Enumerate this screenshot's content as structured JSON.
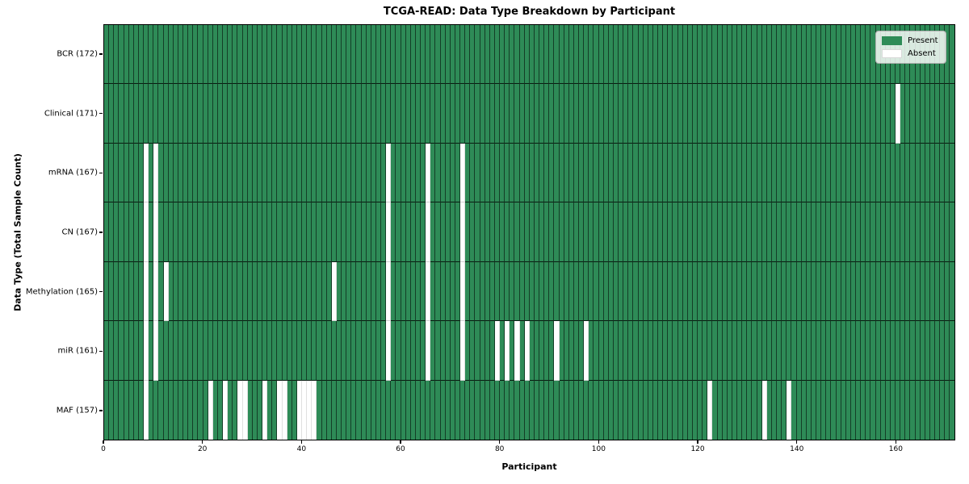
{
  "chart_data": {
    "type": "heatmap",
    "title": "TCGA-READ: Data Type Breakdown by Participant",
    "xlabel": "Participant",
    "ylabel": "Data Type (Total Sample Count)",
    "n_participants": 172,
    "x_ticks": [
      0,
      20,
      40,
      60,
      80,
      100,
      120,
      140,
      160
    ],
    "x_range": [
      0,
      172
    ],
    "grid": false,
    "legend": {
      "present": "Present",
      "absent": "Absent",
      "position": "upper right"
    },
    "colors": {
      "present": "#2E8B57",
      "absent": "#FFFFFF"
    },
    "rows": [
      {
        "label": "BCR (172)",
        "data_type": "BCR",
        "sample_count": 172,
        "absent_participants": []
      },
      {
        "label": "Clinical (171)",
        "data_type": "Clinical",
        "sample_count": 171,
        "absent_participants": [
          160
        ]
      },
      {
        "label": "mRNA (167)",
        "data_type": "mRNA",
        "sample_count": 167,
        "absent_participants": [
          8,
          10,
          57,
          65,
          72
        ]
      },
      {
        "label": "CN (167)",
        "data_type": "CN",
        "sample_count": 167,
        "absent_participants": [
          8,
          10,
          57,
          65,
          72
        ]
      },
      {
        "label": "Methylation (165)",
        "data_type": "Methylation",
        "sample_count": 165,
        "absent_participants": [
          8,
          10,
          12,
          46,
          57,
          65,
          72
        ]
      },
      {
        "label": "miR (161)",
        "data_type": "miR",
        "sample_count": 161,
        "absent_participants": [
          8,
          10,
          57,
          65,
          72,
          79,
          81,
          83,
          85,
          91,
          97
        ]
      },
      {
        "label": "MAF (157)",
        "data_type": "MAF",
        "sample_count": 157,
        "absent_participants": [
          8,
          21,
          24,
          27,
          28,
          32,
          35,
          36,
          39,
          40,
          41,
          42,
          122,
          133,
          138
        ]
      }
    ]
  }
}
